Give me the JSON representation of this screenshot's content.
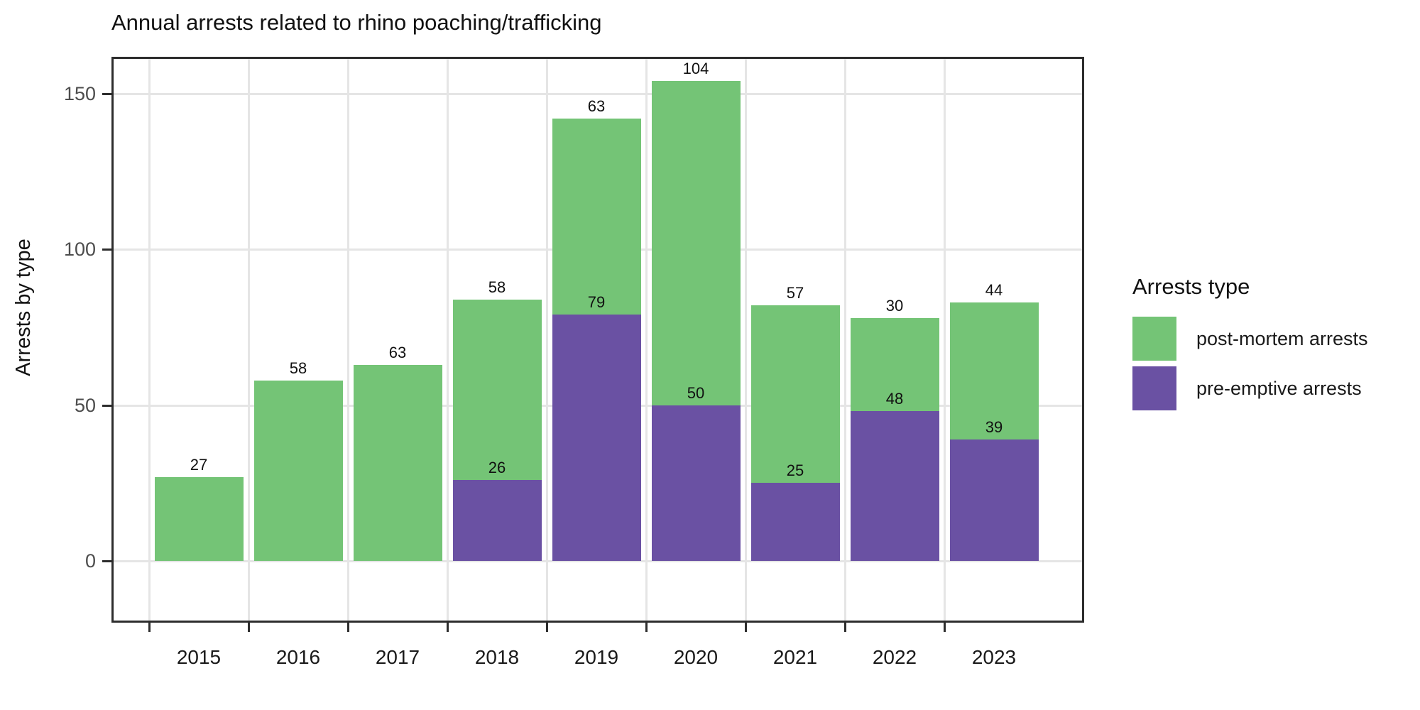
{
  "title": "Annual arrests related to rhino poaching/trafficking",
  "y_axis": {
    "label": "Arrests by type",
    "tick_labels": [
      "0",
      "50",
      "100",
      "150"
    ]
  },
  "legend": {
    "title": "Arrests type",
    "items": [
      {
        "label": "post-mortem arrests",
        "color": "#74C476"
      },
      {
        "label": "pre-emptive arrests",
        "color": "#6A51A3"
      }
    ]
  },
  "colors": {
    "post_mortem_green": "#74C476",
    "pre_emptive_purple": "#6A51A3",
    "gridline": "#E5E5E5",
    "panel_border": "#2D2D2D",
    "axis_tick_text": "#4D4D4D",
    "text": "#111111"
  },
  "chart_data": {
    "type": "bar",
    "stacked": true,
    "title": "Annual arrests related to rhino poaching/trafficking",
    "xlabel": "",
    "ylabel": "Arrests by type",
    "categories": [
      "2015",
      "2016",
      "2017",
      "2018",
      "2019",
      "2020",
      "2021",
      "2022",
      "2023"
    ],
    "series": [
      {
        "name": "pre-emptive arrests",
        "color": "#6A51A3",
        "values": [
          0,
          0,
          0,
          26,
          79,
          50,
          25,
          48,
          39
        ]
      },
      {
        "name": "post-mortem arrests",
        "color": "#74C476",
        "values": [
          27,
          58,
          63,
          58,
          63,
          104,
          57,
          30,
          44
        ]
      }
    ],
    "totals": [
      27,
      58,
      63,
      84,
      142,
      154,
      82,
      78,
      83
    ],
    "segment_labels_shown": true,
    "ylim": [
      0,
      162
    ],
    "y_breaks": [
      0,
      50,
      100,
      150
    ],
    "grid": true,
    "legend_position": "right"
  }
}
